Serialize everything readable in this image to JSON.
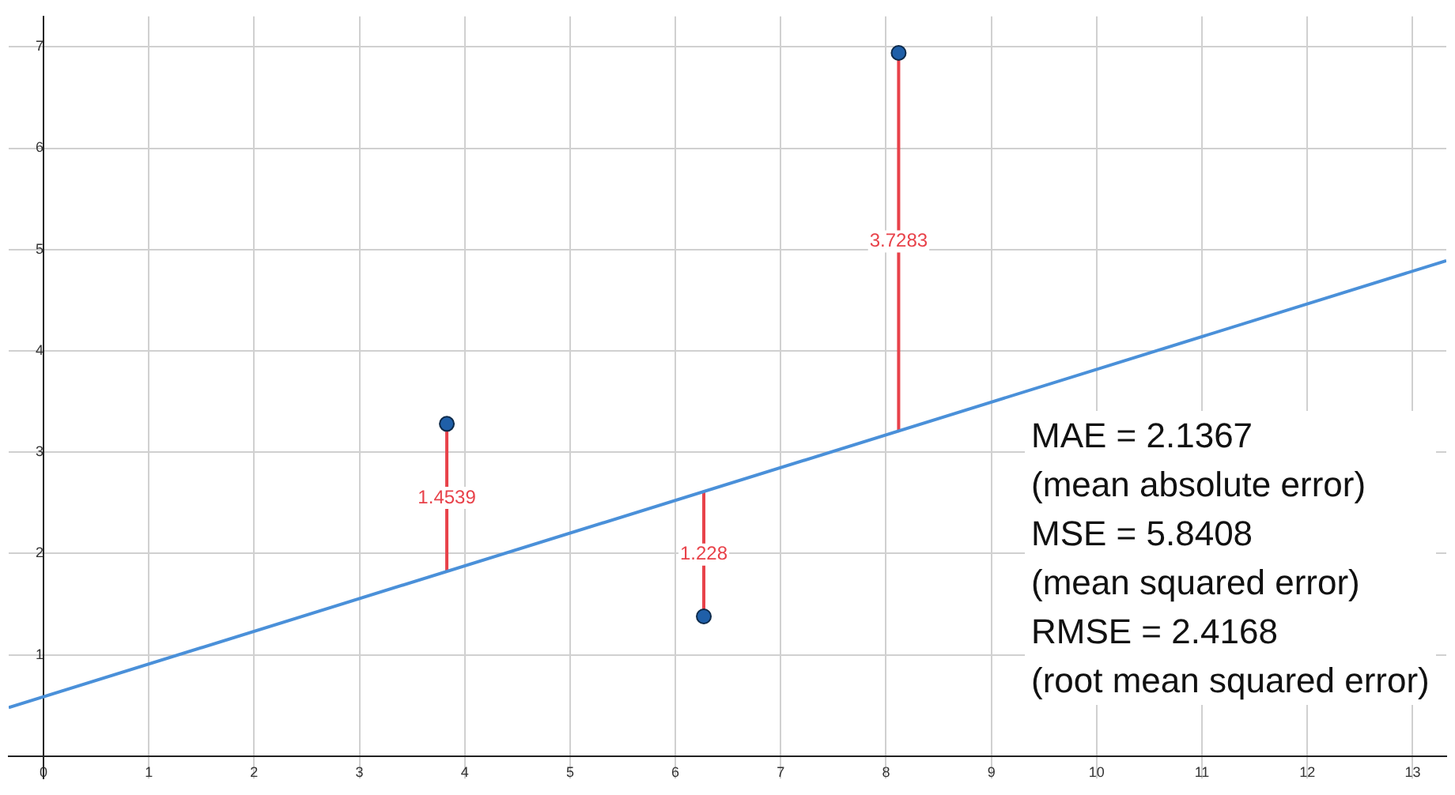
{
  "chart_data": {
    "type": "scatter",
    "xlim": [
      -0.33,
      13.32
    ],
    "ylim": [
      -0.22,
      7.3
    ],
    "xticks": [
      0,
      1,
      2,
      3,
      4,
      5,
      6,
      7,
      8,
      9,
      10,
      11,
      12,
      13
    ],
    "yticks": [
      {
        "value": 0,
        "label": null
      },
      1,
      2,
      3,
      4,
      5,
      6,
      7
    ],
    "grid": true,
    "legend": false,
    "series": [
      {
        "color": "#1f5fa8",
        "marker": "circle",
        "x": [
          3.83,
          6.27,
          8.12
        ],
        "values": [
          3.28,
          1.38,
          6.94
        ]
      },
      {
        "type": "line",
        "marker": "none",
        "color": "#4a90d9",
        "x": [
          -0.33,
          13.32
        ],
        "values": [
          0.48,
          4.89
        ]
      },
      {
        "type": "line",
        "marker": "none",
        "color": "#e8424a",
        "x": [
          3.83,
          3.83
        ],
        "values": [
          3.28,
          1.83
        ]
      },
      {
        "type": "line",
        "marker": "none",
        "color": "#e8424a",
        "x": [
          6.27,
          6.27
        ],
        "values": [
          2.61,
          1.38
        ]
      },
      {
        "type": "line",
        "marker": "none",
        "color": "#e8424a",
        "x": [
          8.12,
          8.12
        ],
        "values": [
          6.94,
          3.21
        ]
      }
    ],
    "annotations": [
      {
        "text": "1.4539",
        "x": 3.83,
        "y": 2.55
      },
      {
        "text": "1.228",
        "x": 6.27,
        "y": 1.99
      },
      {
        "text": "3.7283",
        "x": 8.12,
        "y": 5.08
      },
      "MAE = 2.1367",
      "(mean absolute error)",
      "MSE = 5.8408",
      "(mean squared error)",
      "RMSE = 2.4168",
      "(root mean squared error)"
    ]
  }
}
